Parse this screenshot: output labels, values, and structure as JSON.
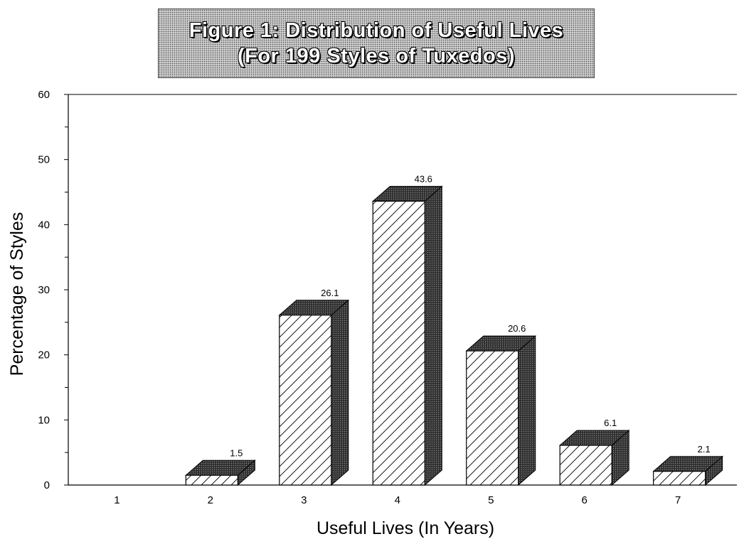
{
  "chart_data": {
    "type": "bar",
    "title_lines": [
      "Figure 1: Distribution of Useful Lives",
      "(For 199 Styles of Tuxedos)"
    ],
    "xlabel": "Useful Lives (In Years)",
    "ylabel": "Percentage of Styles",
    "categories": [
      "1",
      "2",
      "3",
      "4",
      "5",
      "6",
      "7"
    ],
    "values": [
      0,
      1.5,
      26.1,
      43.6,
      20.6,
      6.1,
      2.1
    ],
    "value_labels": [
      "",
      "1.5",
      "26.1",
      "43.6",
      "20.6",
      "6.1",
      "2.1"
    ],
    "ylim": [
      0,
      60
    ],
    "yticks": [
      "0",
      "10",
      "20",
      "30",
      "40",
      "50",
      "60"
    ],
    "grid": false,
    "bar_style": "3d-hatched",
    "colors": {
      "hatch": "#000000",
      "face": "#ffffff",
      "shade": "#3a3a3a"
    }
  }
}
